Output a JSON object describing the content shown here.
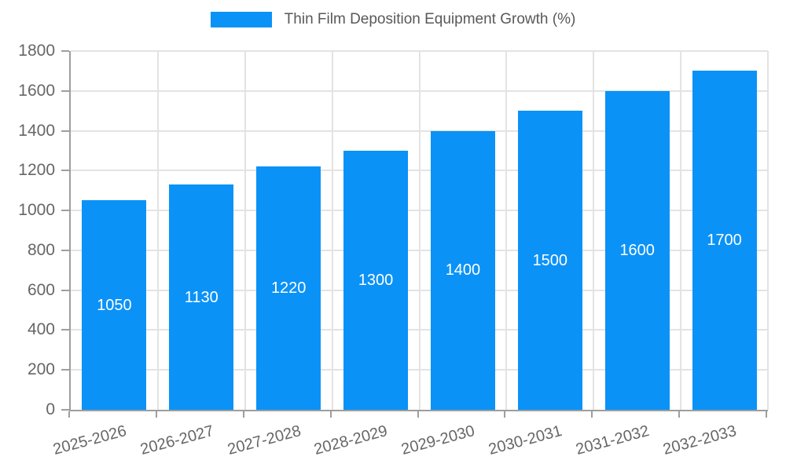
{
  "chart_data": {
    "type": "bar",
    "title": "Thin Film Deposition Equipment Growth (%)",
    "categories": [
      "2025-2026",
      "2026-2027",
      "2027-2028",
      "2028-2029",
      "2029-2030",
      "2030-2031",
      "2031-2032",
      "2032-2033"
    ],
    "values": [
      1050,
      1130,
      1220,
      1300,
      1400,
      1500,
      1600,
      1700
    ],
    "value_labels": [
      "1050",
      "1130",
      "1220",
      "1300",
      "1400",
      "1500",
      "1600",
      "1700"
    ],
    "xlabel": "",
    "ylabel": "",
    "ylim": [
      0,
      1800
    ],
    "ytick_step": 200,
    "ytick_labels": [
      "0",
      "200",
      "400",
      "600",
      "800",
      "1000",
      "1200",
      "1400",
      "1600",
      "1800"
    ],
    "grid": true,
    "legend_position": "top-center",
    "value_label_position": "inside-center",
    "xtick_label_rotation_deg": -15,
    "colors": {
      "bar": "#0b92f7",
      "grid": "#e3e3e3",
      "axis": "#9e9e9e",
      "tick_text": "#666666",
      "legend_text": "#595959",
      "value_label_text": "#ffffff",
      "background": "#ffffff"
    }
  }
}
